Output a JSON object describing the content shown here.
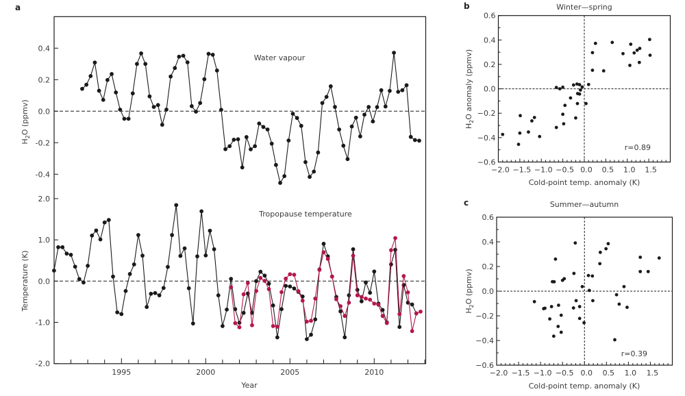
{
  "chart_data": [
    {
      "panel": "a",
      "type": "line",
      "title": "",
      "subplots": [
        {
          "annotation": "Water vapour",
          "ylabel": "H2O (ppmv)",
          "ylabel_main": "H",
          "ylabel_sub": "2",
          "ylabel_rest": "O (ppmv)",
          "ylim": [
            -0.5,
            0.6
          ],
          "yticks": [
            0.4,
            0.2,
            0.0,
            -0.2,
            -0.4
          ],
          "ytick_labels": [
            "0.4",
            "0.2",
            "0.0",
            "-0.2",
            "-0.4"
          ],
          "zero_line": "dashed",
          "series": [
            {
              "name": "Water vapour",
              "color": "#1a1a1a",
              "x_start": 1992.67,
              "x_step": 0.25,
              "values": [
                0.142,
                0.168,
                0.223,
                0.309,
                0.13,
                0.072,
                0.198,
                0.236,
                0.119,
                0.01,
                -0.048,
                -0.048,
                0.113,
                0.3,
                0.367,
                0.3,
                0.094,
                0.027,
                0.039,
                -0.086,
                0.01,
                0.22,
                0.274,
                0.346,
                0.352,
                0.31,
                0.032,
                -0.003,
                0.052,
                0.203,
                0.364,
                0.358,
                0.258,
                0.009,
                -0.241,
                -0.222,
                -0.181,
                -0.178,
                -0.357,
                -0.164,
                -0.242,
                -0.222,
                -0.078,
                -0.1,
                -0.116,
                -0.206,
                -0.341,
                -0.455,
                -0.412,
                -0.186,
                -0.016,
                -0.043,
                -0.093,
                -0.323,
                -0.417,
                -0.383,
                -0.262,
                0.052,
                0.091,
                0.158,
                0.027,
                -0.116,
                -0.219,
                -0.304,
                -0.097,
                -0.041,
                -0.16,
                -0.022,
                0.027,
                -0.065,
                0.026,
                0.133,
                0.03,
                0.129,
                0.371,
                0.123,
                0.133,
                0.165,
                -0.163,
                -0.183,
                -0.187
              ]
            }
          ]
        },
        {
          "annotation": "Tropopause temperature",
          "ylabel": "Temperature (K)",
          "ylim": [
            -2.0,
            2.0
          ],
          "yticks": [
            2.0,
            1.0,
            0.0,
            -1.0,
            -2.0
          ],
          "ytick_labels": [
            "2.0",
            "1.0",
            "0.0",
            "-1.0",
            "-2.0"
          ],
          "xlabel": "Year",
          "xlim": [
            1991.0,
            2013.1
          ],
          "xticks_major": [
            1995,
            2000,
            2005,
            2010
          ],
          "xtick_labels": [
            "1995",
            "2000",
            "2005",
            "2010"
          ],
          "xticks_minor_step": 1,
          "zero_line": "dashed",
          "series": [
            {
              "name": "Tropopause temperature (black)",
              "color": "#1a1a1a",
              "x_start": 1991.0,
              "x_step": 0.25,
              "values": [
                0.255,
                0.822,
                0.822,
                0.667,
                0.638,
                0.35,
                0.05,
                -0.033,
                0.372,
                1.105,
                1.227,
                1.01,
                1.422,
                1.483,
                0.11,
                -0.757,
                -0.8,
                -0.24,
                0.172,
                0.405,
                1.117,
                0.617,
                -0.628,
                -0.307,
                -0.29,
                -0.345,
                -0.167,
                0.344,
                1.117,
                1.843,
                0.61,
                0.794,
                -0.173,
                -1.028,
                0.6,
                1.693,
                0.622,
                1.222,
                0.772,
                -0.345,
                -1.09,
                -0.69,
                0.055,
                -0.68,
                -1.01,
                -0.77,
                -0.3,
                -0.77,
                0.0,
                0.227,
                0.133,
                -0.062,
                -0.59,
                -1.365,
                -0.68,
                -0.115,
                -0.13,
                -0.178,
                -0.262,
                -0.373,
                -1.407,
                -1.3,
                -0.928,
                0.283,
                0.905,
                0.6,
                0.11,
                -0.383,
                -0.733,
                -1.362,
                -0.345,
                0.772,
                -0.212,
                -0.49,
                -0.033,
                -0.283,
                0.233,
                -0.545,
                -0.7,
                -1.0,
                0.405,
                0.76,
                -1.112,
                -0.095,
                -0.523,
                -0.567,
                -0.783
              ]
            },
            {
              "name": "Tropopause temperature (red)",
              "color": "#b5174b",
              "x_start": 2001.5,
              "x_step": 0.25,
              "values": [
                -0.15,
                -1.02,
                -1.12,
                -0.32,
                -0.045,
                -1.07,
                -0.24,
                0.077,
                0.005,
                -0.195,
                -1.09,
                -1.107,
                -0.267,
                0.06,
                0.167,
                0.155,
                -0.245,
                -0.473,
                -0.983,
                -0.962,
                -0.423,
                0.272,
                0.7,
                0.538,
                0.11,
                -0.44,
                -0.607,
                -0.845,
                -0.523,
                0.617,
                -0.345,
                -0.383,
                -0.423,
                -0.45,
                -0.545,
                -0.573,
                -0.845,
                -1.017,
                0.75,
                1.043,
                -0.8,
                0.122,
                -0.273,
                -1.212,
                -0.783,
                -0.74
              ]
            }
          ]
        }
      ]
    },
    {
      "panel": "b",
      "type": "scatter",
      "title": "Winter—spring",
      "xlabel": "Cold-point temp. anomaly (K)",
      "ylabel": "H2O anomaly (ppmv)",
      "ylabel_main": "H",
      "ylabel_sub": "2",
      "ylabel_rest": "O anomaly (ppmv)",
      "xlim": [
        -2.0,
        2.0
      ],
      "ylim": [
        -0.6,
        0.6
      ],
      "xticks": [
        -2.0,
        -1.5,
        -1.0,
        -0.5,
        0.0,
        0.5,
        1.0,
        1.5
      ],
      "xtick_labels": [
        "−2.0",
        "−1.5",
        "−1.0",
        "−0.5",
        "0.0",
        "0.5",
        "1.0",
        "1.5"
      ],
      "yticks": [
        0.6,
        0.4,
        0.2,
        0.0,
        -0.2,
        -0.4,
        -0.6
      ],
      "ytick_labels": [
        "0.6",
        "0.4",
        "0.2",
        "0.0",
        "−0.2",
        "−0.4",
        "−0.6"
      ],
      "annotation": "r=0.89",
      "r": 0.89,
      "points": [
        [
          -1.9,
          -0.374
        ],
        [
          -1.49,
          -0.22
        ],
        [
          -1.5,
          -0.363
        ],
        [
          -1.53,
          -0.455
        ],
        [
          -1.3,
          -0.354
        ],
        [
          -1.22,
          -0.263
        ],
        [
          -1.16,
          -0.235
        ],
        [
          -1.04,
          -0.391
        ],
        [
          -0.65,
          -0.317
        ],
        [
          -0.65,
          0.011
        ],
        [
          -0.57,
          0.0
        ],
        [
          -0.5,
          0.013
        ],
        [
          -0.5,
          -0.209
        ],
        [
          -0.48,
          -0.287
        ],
        [
          -0.45,
          -0.136
        ],
        [
          -0.32,
          -0.075
        ],
        [
          -0.25,
          0.031
        ],
        [
          -0.2,
          -0.239
        ],
        [
          -0.17,
          0.039
        ],
        [
          -0.16,
          -0.121
        ],
        [
          -0.155,
          -0.039
        ],
        [
          -0.11,
          -0.043
        ],
        [
          -0.11,
          0.034
        ],
        [
          -0.09,
          -0.01
        ],
        [
          -0.05,
          0.015
        ],
        [
          0.04,
          -0.121
        ],
        [
          0.1,
          0.035
        ],
        [
          0.19,
          0.152
        ],
        [
          0.19,
          0.296
        ],
        [
          0.26,
          0.372
        ],
        [
          0.45,
          0.147
        ],
        [
          0.65,
          0.38
        ],
        [
          0.9,
          0.288
        ],
        [
          1.06,
          0.192
        ],
        [
          1.08,
          0.365
        ],
        [
          1.16,
          0.294
        ],
        [
          1.23,
          0.316
        ],
        [
          1.29,
          0.331
        ],
        [
          1.28,
          0.216
        ],
        [
          1.52,
          0.404
        ],
        [
          1.53,
          0.275
        ]
      ]
    },
    {
      "panel": "c",
      "type": "scatter",
      "title": "Summer—autumn",
      "xlabel": "Cold-point temp. anomaly (K)",
      "ylabel": "H2O (ppmv)",
      "ylabel_main": "H",
      "ylabel_sub": "2",
      "ylabel_rest": "O (ppmv)",
      "xlim": [
        -2.0,
        2.0
      ],
      "ylim": [
        -0.6,
        0.6
      ],
      "xticks": [
        -2.0,
        -1.5,
        -1.0,
        -0.5,
        0.0,
        0.5,
        1.0,
        1.5
      ],
      "xtick_labels": [
        "−2.0",
        "−1.5",
        "−1.0",
        "−0.5",
        "0.0",
        "0.5",
        "1.0",
        "1.5"
      ],
      "yticks": [
        0.6,
        0.4,
        0.2,
        0.0,
        -0.2,
        -0.4,
        -0.6
      ],
      "ytick_labels": [
        "0.6",
        "0.4",
        "0.2",
        "0.0",
        "−0.2",
        "−0.4",
        "−0.6"
      ],
      "annotation": "r=0.39",
      "r": 0.39,
      "points": [
        [
          -1.14,
          -0.085
        ],
        [
          -0.93,
          -0.142
        ],
        [
          -0.9,
          -0.138
        ],
        [
          -0.79,
          -0.225
        ],
        [
          -0.75,
          -0.125
        ],
        [
          -0.73,
          0.077
        ],
        [
          -0.69,
          0.076
        ],
        [
          -0.7,
          -0.365
        ],
        [
          -0.66,
          0.26
        ],
        [
          -0.6,
          -0.286
        ],
        [
          -0.59,
          -0.114
        ],
        [
          -0.53,
          -0.195
        ],
        [
          -0.53,
          -0.333
        ],
        [
          -0.5,
          0.088
        ],
        [
          -0.46,
          0.101
        ],
        [
          -0.25,
          -0.136
        ],
        [
          -0.24,
          0.144
        ],
        [
          -0.21,
          0.391
        ],
        [
          -0.19,
          -0.077
        ],
        [
          -0.11,
          -0.125
        ],
        [
          -0.11,
          -0.221
        ],
        [
          -0.05,
          0.037
        ],
        [
          -0.01,
          -0.256
        ],
        [
          0.09,
          0.127
        ],
        [
          0.11,
          0.006
        ],
        [
          0.18,
          0.123
        ],
        [
          0.19,
          -0.077
        ],
        [
          0.35,
          0.223
        ],
        [
          0.36,
          0.315
        ],
        [
          0.49,
          0.344
        ],
        [
          0.54,
          0.385
        ],
        [
          0.69,
          -0.394
        ],
        [
          0.73,
          -0.029
        ],
        [
          0.79,
          -0.105
        ],
        [
          0.9,
          0.037
        ],
        [
          0.97,
          -0.131
        ],
        [
          1.27,
          0.275
        ],
        [
          1.27,
          0.159
        ],
        [
          1.45,
          0.159
        ],
        [
          1.7,
          0.269
        ]
      ]
    }
  ]
}
